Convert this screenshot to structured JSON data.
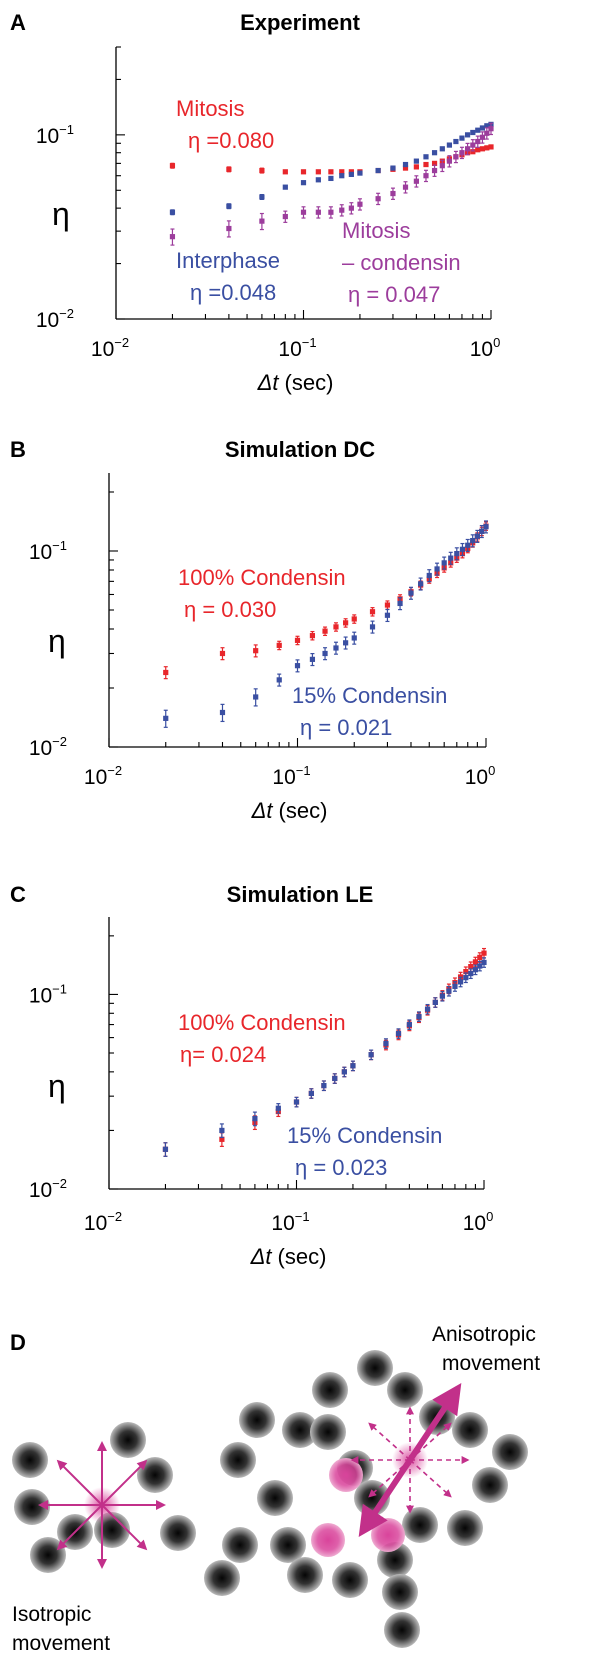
{
  "chart_data": [
    {
      "panel": "A",
      "type": "scatter",
      "title": "Experiment",
      "xlabel": "Δt (sec)",
      "ylabel": "η",
      "xscale": "log",
      "yscale": "log",
      "xlim": [
        0.01,
        1
      ],
      "ylim": [
        0.01,
        0.3
      ],
      "x_ticks": [
        {
          "base": "10",
          "exp": "−2"
        },
        {
          "base": "10",
          "exp": "−1"
        },
        {
          "base": "10",
          "exp": "0"
        }
      ],
      "y_ticks": [
        {
          "base": "10",
          "exp": "−2"
        },
        {
          "base": "10",
          "exp": "−1"
        }
      ],
      "series": [
        {
          "name": "Mitosis",
          "color": "#e8262b",
          "annotation": [
            "Mitosis",
            "η =0.080"
          ],
          "err": 0.03,
          "x": [
            0.02,
            0.04,
            0.06,
            0.08,
            0.1,
            0.12,
            0.14,
            0.16,
            0.18,
            0.2,
            0.25,
            0.3,
            0.35,
            0.4,
            0.45,
            0.5,
            0.55,
            0.6,
            0.65,
            0.7,
            0.75,
            0.8,
            0.85,
            0.9,
            0.95,
            1.0
          ],
          "y": [
            0.068,
            0.065,
            0.064,
            0.063,
            0.063,
            0.063,
            0.063,
            0.063,
            0.063,
            0.063,
            0.064,
            0.065,
            0.066,
            0.067,
            0.069,
            0.07,
            0.072,
            0.074,
            0.076,
            0.078,
            0.08,
            0.081,
            0.083,
            0.084,
            0.085,
            0.086
          ]
        },
        {
          "name": "Interphase",
          "color": "#3a4fa2",
          "annotation": [
            "Interphase",
            "η =0.048"
          ],
          "err": 0.03,
          "x": [
            0.02,
            0.04,
            0.06,
            0.08,
            0.1,
            0.12,
            0.14,
            0.16,
            0.18,
            0.2,
            0.25,
            0.3,
            0.35,
            0.4,
            0.45,
            0.5,
            0.55,
            0.6,
            0.65,
            0.7,
            0.75,
            0.8,
            0.85,
            0.9,
            0.95,
            1.0
          ],
          "y": [
            0.038,
            0.041,
            0.046,
            0.052,
            0.055,
            0.057,
            0.058,
            0.06,
            0.061,
            0.062,
            0.064,
            0.066,
            0.069,
            0.072,
            0.076,
            0.08,
            0.084,
            0.088,
            0.092,
            0.096,
            0.1,
            0.103,
            0.106,
            0.109,
            0.112,
            0.114
          ]
        },
        {
          "name": "Mitosis − condensin",
          "color": "#9c3d9c",
          "annotation": [
            "Mitosis",
            "– condensin",
            "η = 0.047"
          ],
          "err": 0.1,
          "x": [
            0.02,
            0.04,
            0.06,
            0.08,
            0.1,
            0.12,
            0.14,
            0.16,
            0.18,
            0.2,
            0.25,
            0.3,
            0.35,
            0.4,
            0.45,
            0.5,
            0.55,
            0.6,
            0.65,
            0.7,
            0.75,
            0.8,
            0.85,
            0.9,
            0.95,
            1.0
          ],
          "y": [
            0.028,
            0.031,
            0.034,
            0.036,
            0.038,
            0.038,
            0.038,
            0.039,
            0.04,
            0.042,
            0.045,
            0.048,
            0.052,
            0.056,
            0.06,
            0.064,
            0.068,
            0.072,
            0.076,
            0.08,
            0.084,
            0.088,
            0.092,
            0.097,
            0.102,
            0.108
          ]
        }
      ]
    },
    {
      "panel": "B",
      "type": "scatter",
      "title": "Simulation DC",
      "xlabel": "Δt (sec)",
      "ylabel": "η",
      "xscale": "log",
      "yscale": "log",
      "xlim": [
        0.01,
        1
      ],
      "ylim": [
        0.01,
        0.25
      ],
      "x_ticks": [
        {
          "base": "10",
          "exp": "−2"
        },
        {
          "base": "10",
          "exp": "−1"
        },
        {
          "base": "10",
          "exp": "0"
        }
      ],
      "y_ticks": [
        {
          "base": "10",
          "exp": "−2"
        },
        {
          "base": "10",
          "exp": "−1"
        }
      ],
      "series": [
        {
          "name": "100% Condensin",
          "color": "#e8262b",
          "annotation": [
            "100% Condensin",
            "η = 0.030"
          ],
          "err": 0.07,
          "x": [
            0.02,
            0.04,
            0.06,
            0.08,
            0.1,
            0.12,
            0.14,
            0.16,
            0.18,
            0.2,
            0.25,
            0.3,
            0.35,
            0.4,
            0.45,
            0.5,
            0.55,
            0.6,
            0.65,
            0.7,
            0.75,
            0.8,
            0.85,
            0.9,
            0.95,
            1.0
          ],
          "y": [
            0.024,
            0.03,
            0.031,
            0.033,
            0.035,
            0.037,
            0.039,
            0.041,
            0.043,
            0.045,
            0.049,
            0.053,
            0.057,
            0.062,
            0.067,
            0.072,
            0.077,
            0.082,
            0.087,
            0.092,
            0.097,
            0.103,
            0.11,
            0.118,
            0.126,
            0.134
          ]
        },
        {
          "name": "15% Condensin",
          "color": "#3a4fa2",
          "annotation": [
            "15% Condensin",
            "η = 0.021"
          ],
          "err": 0.1,
          "x": [
            0.02,
            0.04,
            0.06,
            0.08,
            0.1,
            0.12,
            0.14,
            0.16,
            0.18,
            0.2,
            0.25,
            0.3,
            0.35,
            0.4,
            0.45,
            0.5,
            0.55,
            0.6,
            0.65,
            0.7,
            0.75,
            0.8,
            0.85,
            0.9,
            0.95,
            1.0
          ],
          "y": [
            0.014,
            0.015,
            0.018,
            0.022,
            0.026,
            0.028,
            0.03,
            0.032,
            0.034,
            0.036,
            0.041,
            0.047,
            0.054,
            0.061,
            0.068,
            0.075,
            0.081,
            0.087,
            0.092,
            0.097,
            0.102,
            0.107,
            0.113,
            0.119,
            0.126,
            0.133
          ]
        }
      ]
    },
    {
      "panel": "C",
      "type": "scatter",
      "title": "Simulation LE",
      "xlabel": "Δt (sec)",
      "ylabel": "η",
      "xscale": "log",
      "yscale": "log",
      "xlim": [
        0.01,
        1
      ],
      "ylim": [
        0.01,
        0.25
      ],
      "x_ticks": [
        {
          "base": "10",
          "exp": "−2"
        },
        {
          "base": "10",
          "exp": "−1"
        },
        {
          "base": "10",
          "exp": "0"
        }
      ],
      "y_ticks": [
        {
          "base": "10",
          "exp": "−2"
        },
        {
          "base": "10",
          "exp": "−1"
        }
      ],
      "series": [
        {
          "name": "100% Condensin",
          "color": "#e8262b",
          "annotation": [
            "100% Condensin",
            "η= 0.024"
          ],
          "err": 0.08,
          "x": [
            0.02,
            0.04,
            0.06,
            0.08,
            0.1,
            0.12,
            0.14,
            0.16,
            0.18,
            0.2,
            0.25,
            0.3,
            0.35,
            0.4,
            0.45,
            0.5,
            0.55,
            0.6,
            0.65,
            0.7,
            0.75,
            0.8,
            0.85,
            0.9,
            0.95,
            1.0
          ],
          "y": [
            0.016,
            0.018,
            0.022,
            0.025,
            0.028,
            0.031,
            0.034,
            0.037,
            0.04,
            0.043,
            0.049,
            0.055,
            0.062,
            0.069,
            0.076,
            0.083,
            0.091,
            0.099,
            0.107,
            0.115,
            0.123,
            0.131,
            0.139,
            0.147,
            0.155,
            0.163
          ]
        },
        {
          "name": "15% Condensin",
          "color": "#3a4fa2",
          "annotation": [
            "15% Condensin",
            "η = 0.023"
          ],
          "err": 0.08,
          "x": [
            0.02,
            0.04,
            0.06,
            0.08,
            0.1,
            0.12,
            0.14,
            0.16,
            0.18,
            0.2,
            0.25,
            0.3,
            0.35,
            0.4,
            0.45,
            0.5,
            0.55,
            0.6,
            0.65,
            0.7,
            0.75,
            0.8,
            0.85,
            0.9,
            0.95,
            1.0
          ],
          "y": [
            0.016,
            0.02,
            0.023,
            0.026,
            0.028,
            0.031,
            0.034,
            0.037,
            0.04,
            0.043,
            0.049,
            0.056,
            0.063,
            0.07,
            0.077,
            0.084,
            0.091,
            0.098,
            0.104,
            0.11,
            0.116,
            0.122,
            0.128,
            0.134,
            0.14,
            0.146
          ]
        }
      ]
    }
  ],
  "panel_d": {
    "letter": "D",
    "label_left": [
      "Isotropic",
      "movement"
    ],
    "label_right": [
      "Anisotropic",
      "movement"
    ],
    "arrow_color": "#c2308a",
    "highlight_color": "#d9449b"
  }
}
